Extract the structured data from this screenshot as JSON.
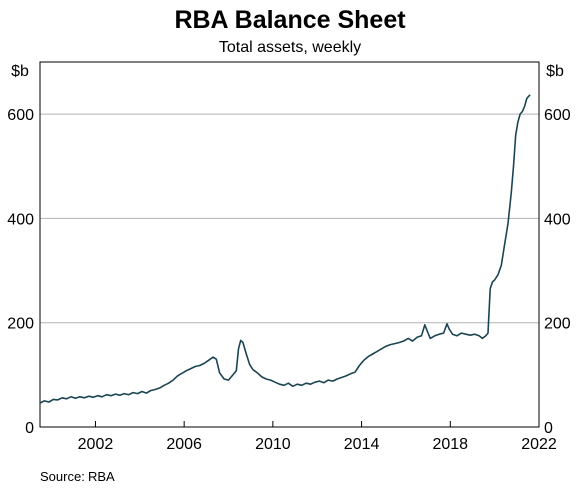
{
  "chart_data": {
    "type": "line",
    "title": "RBA Balance Sheet",
    "subtitle": "Total assets, weekly",
    "y_unit_left": "$b",
    "y_unit_right": "$b",
    "source_label": "Source:",
    "source_value": "RBA",
    "xlim": [
      1999.5,
      2022.0
    ],
    "ylim": [
      0,
      700
    ],
    "x_ticks": [
      2002,
      2006,
      2010,
      2014,
      2018,
      2022
    ],
    "x_tick_labels": [
      "2002",
      "2006",
      "2010",
      "2014",
      "2018",
      "2022"
    ],
    "y_ticks": [
      0,
      200,
      400,
      600
    ],
    "y_tick_labels": [
      "0",
      "200",
      "400",
      "600"
    ],
    "grid": "horizontal",
    "line_color": "#1b4552",
    "series": [
      {
        "points": [
          [
            1999.5,
            46
          ],
          [
            1999.7,
            50
          ],
          [
            1999.9,
            48
          ],
          [
            2000.1,
            53
          ],
          [
            2000.3,
            52
          ],
          [
            2000.5,
            56
          ],
          [
            2000.7,
            54
          ],
          [
            2000.9,
            58
          ],
          [
            2001.1,
            55
          ],
          [
            2001.3,
            58
          ],
          [
            2001.5,
            56
          ],
          [
            2001.7,
            59
          ],
          [
            2001.9,
            57
          ],
          [
            2002.1,
            60
          ],
          [
            2002.3,
            58
          ],
          [
            2002.5,
            62
          ],
          [
            2002.7,
            60
          ],
          [
            2002.9,
            63
          ],
          [
            2003.1,
            61
          ],
          [
            2003.3,
            64
          ],
          [
            2003.5,
            62
          ],
          [
            2003.7,
            66
          ],
          [
            2003.9,
            64
          ],
          [
            2004.1,
            68
          ],
          [
            2004.3,
            65
          ],
          [
            2004.5,
            70
          ],
          [
            2004.7,
            72
          ],
          [
            2004.9,
            75
          ],
          [
            2005.1,
            80
          ],
          [
            2005.3,
            84
          ],
          [
            2005.5,
            90
          ],
          [
            2005.7,
            98
          ],
          [
            2005.9,
            103
          ],
          [
            2006.1,
            108
          ],
          [
            2006.3,
            112
          ],
          [
            2006.5,
            116
          ],
          [
            2006.7,
            118
          ],
          [
            2006.9,
            122
          ],
          [
            2007.1,
            128
          ],
          [
            2007.3,
            134
          ],
          [
            2007.45,
            130
          ],
          [
            2007.6,
            104
          ],
          [
            2007.8,
            92
          ],
          [
            2008.0,
            90
          ],
          [
            2008.2,
            100
          ],
          [
            2008.35,
            108
          ],
          [
            2008.45,
            150
          ],
          [
            2008.55,
            166
          ],
          [
            2008.65,
            162
          ],
          [
            2008.8,
            140
          ],
          [
            2008.95,
            120
          ],
          [
            2009.1,
            110
          ],
          [
            2009.3,
            104
          ],
          [
            2009.5,
            96
          ],
          [
            2009.7,
            92
          ],
          [
            2009.9,
            90
          ],
          [
            2010.1,
            86
          ],
          [
            2010.3,
            82
          ],
          [
            2010.5,
            80
          ],
          [
            2010.7,
            84
          ],
          [
            2010.9,
            78
          ],
          [
            2011.1,
            82
          ],
          [
            2011.3,
            80
          ],
          [
            2011.5,
            84
          ],
          [
            2011.7,
            82
          ],
          [
            2011.9,
            86
          ],
          [
            2012.1,
            88
          ],
          [
            2012.3,
            85
          ],
          [
            2012.5,
            90
          ],
          [
            2012.7,
            88
          ],
          [
            2012.9,
            92
          ],
          [
            2013.1,
            95
          ],
          [
            2013.3,
            98
          ],
          [
            2013.5,
            102
          ],
          [
            2013.7,
            105
          ],
          [
            2013.9,
            118
          ],
          [
            2014.1,
            128
          ],
          [
            2014.3,
            135
          ],
          [
            2014.5,
            140
          ],
          [
            2014.7,
            145
          ],
          [
            2014.9,
            150
          ],
          [
            2015.1,
            155
          ],
          [
            2015.3,
            158
          ],
          [
            2015.5,
            160
          ],
          [
            2015.7,
            162
          ],
          [
            2015.9,
            165
          ],
          [
            2016.1,
            170
          ],
          [
            2016.3,
            165
          ],
          [
            2016.5,
            172
          ],
          [
            2016.7,
            175
          ],
          [
            2016.85,
            196
          ],
          [
            2016.95,
            185
          ],
          [
            2017.1,
            170
          ],
          [
            2017.3,
            175
          ],
          [
            2017.5,
            178
          ],
          [
            2017.7,
            180
          ],
          [
            2017.85,
            198
          ],
          [
            2017.95,
            188
          ],
          [
            2018.1,
            178
          ],
          [
            2018.3,
            175
          ],
          [
            2018.5,
            180
          ],
          [
            2018.7,
            178
          ],
          [
            2018.9,
            176
          ],
          [
            2019.1,
            178
          ],
          [
            2019.3,
            175
          ],
          [
            2019.45,
            170
          ],
          [
            2019.6,
            175
          ],
          [
            2019.7,
            180
          ],
          [
            2019.8,
            265
          ],
          [
            2019.9,
            278
          ],
          [
            2020.0,
            282
          ],
          [
            2020.15,
            292
          ],
          [
            2020.3,
            310
          ],
          [
            2020.45,
            350
          ],
          [
            2020.6,
            390
          ],
          [
            2020.75,
            450
          ],
          [
            2020.85,
            500
          ],
          [
            2020.95,
            560
          ],
          [
            2021.05,
            585
          ],
          [
            2021.15,
            600
          ],
          [
            2021.25,
            605
          ],
          [
            2021.35,
            615
          ],
          [
            2021.45,
            630
          ],
          [
            2021.55,
            635
          ],
          [
            2021.6,
            637
          ]
        ]
      }
    ]
  }
}
